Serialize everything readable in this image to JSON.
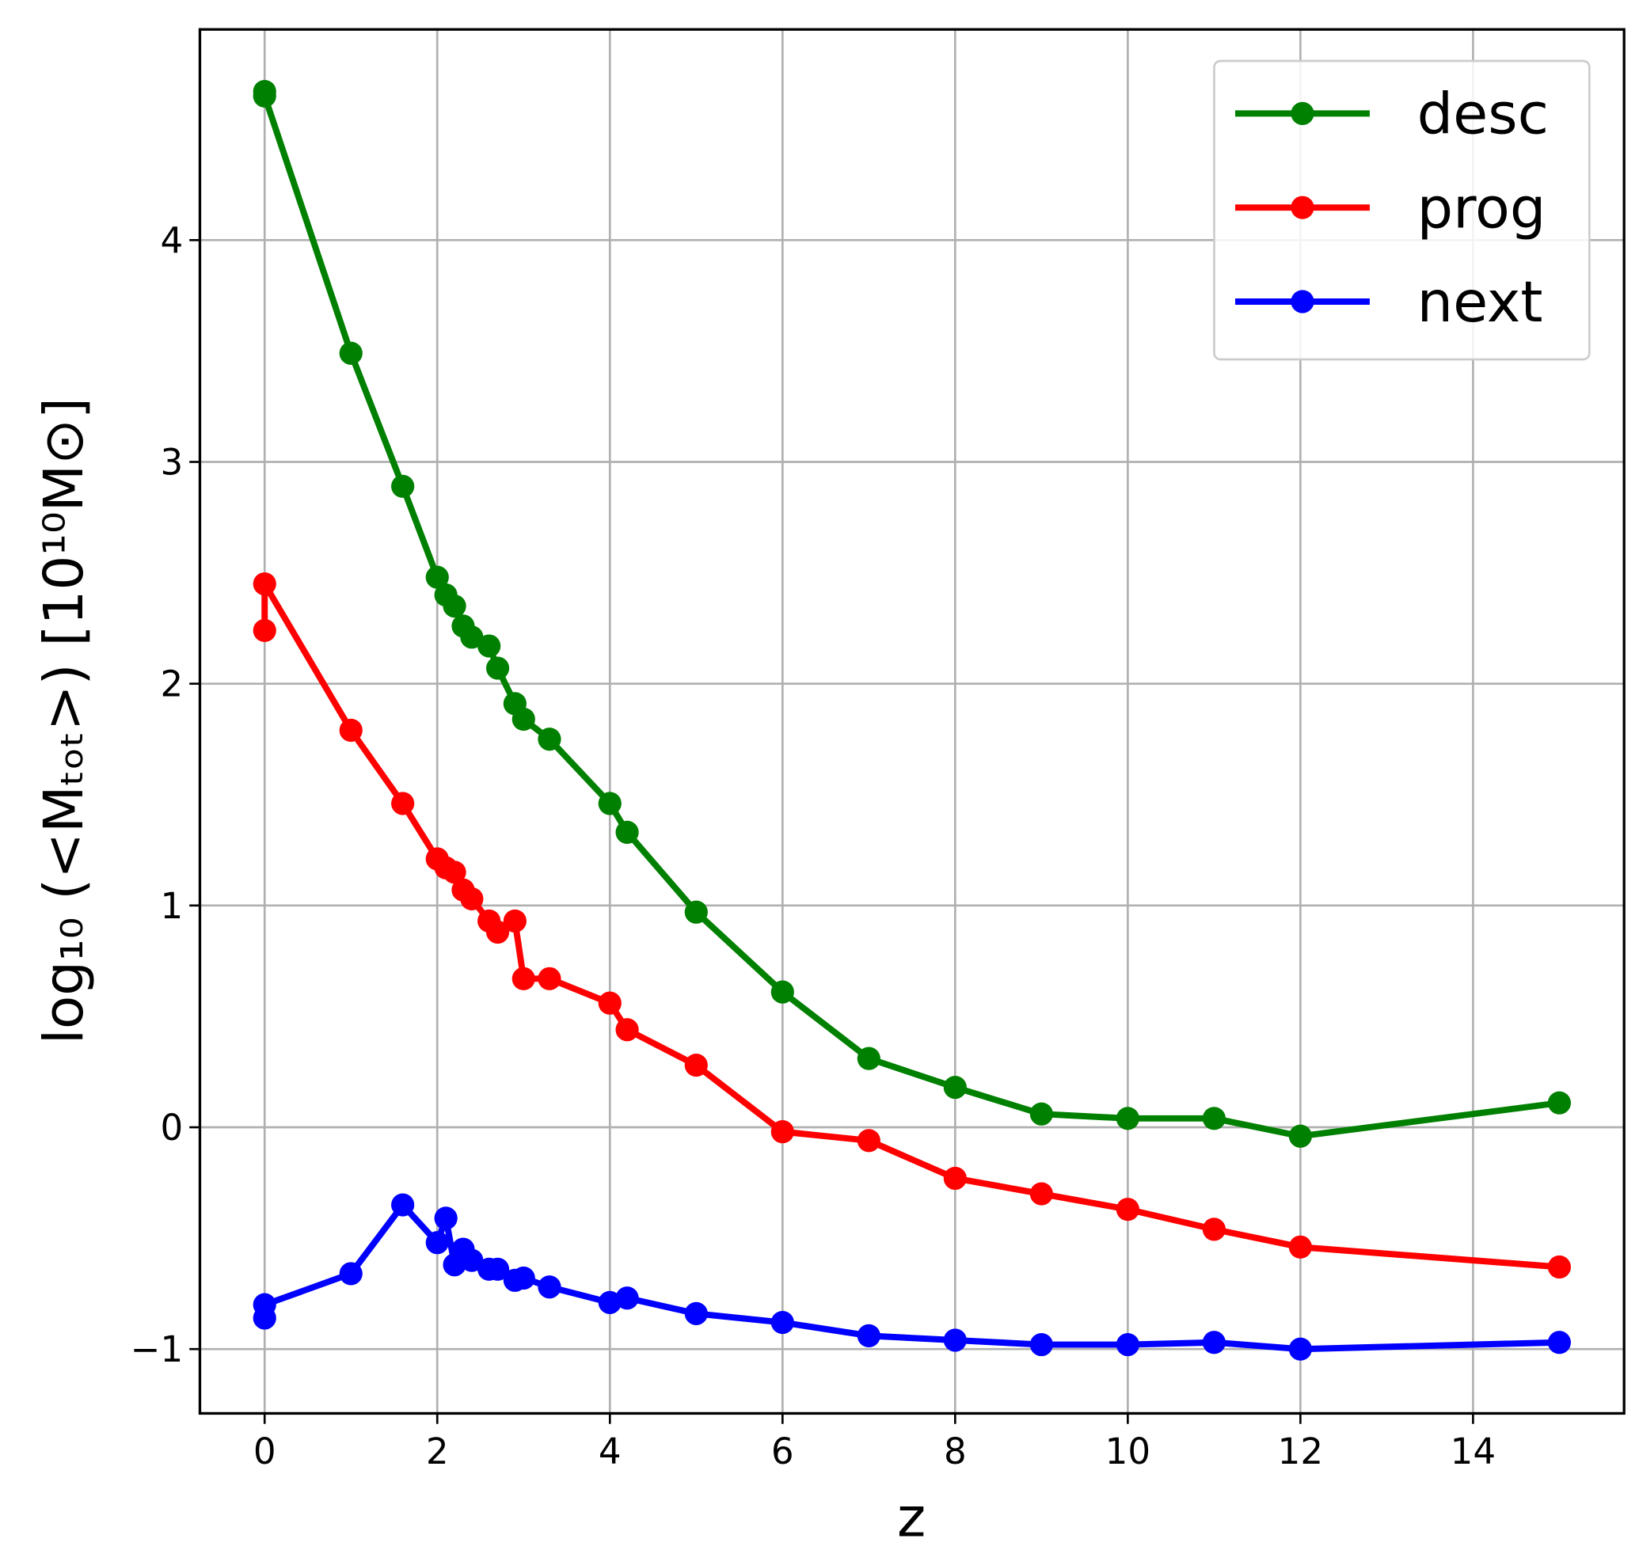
{
  "chart_data": {
    "type": "line",
    "xlabel": "z",
    "ylabel": "log₁₀ (<Mₜₒₜ>) [10¹⁰M⊙]",
    "x": [
      0,
      0,
      1,
      1.6,
      2,
      2.1,
      2.2,
      2.3,
      2.4,
      2.6,
      2.7,
      2.9,
      3.0,
      3.3,
      4,
      4.2,
      5,
      6,
      7,
      8,
      9,
      10,
      11,
      12,
      15
    ],
    "series": [
      {
        "name": "desc",
        "color": "#008000",
        "values": [
          4.67,
          4.65,
          3.49,
          2.89,
          2.48,
          2.4,
          2.35,
          2.26,
          2.21,
          2.17,
          2.07,
          1.91,
          1.84,
          1.75,
          1.46,
          1.33,
          0.97,
          0.61,
          0.31,
          0.18,
          0.06,
          0.04,
          0.04,
          -0.04,
          0.11
        ]
      },
      {
        "name": "prog",
        "color": "#ff0000",
        "values": [
          2.24,
          2.45,
          1.79,
          1.46,
          1.21,
          1.17,
          1.15,
          1.07,
          1.03,
          0.93,
          0.88,
          0.93,
          0.67,
          0.67,
          0.56,
          0.44,
          0.28,
          -0.02,
          -0.06,
          -0.23,
          -0.3,
          -0.37,
          -0.46,
          -0.54,
          -0.63
        ]
      },
      {
        "name": "next",
        "color": "#0000ff",
        "values": [
          -0.86,
          -0.8,
          -0.66,
          -0.35,
          -0.52,
          -0.41,
          -0.62,
          -0.55,
          -0.6,
          -0.64,
          -0.64,
          -0.69,
          -0.68,
          -0.72,
          -0.79,
          -0.77,
          -0.84,
          -0.88,
          -0.94,
          -0.96,
          -0.98,
          -0.98,
          -0.97,
          -1.0,
          -0.97
        ]
      }
    ],
    "xlim": [
      -0.75,
      15.75
    ],
    "ylim": [
      -1.29,
      4.95
    ],
    "xticks": [
      0,
      2,
      4,
      6,
      8,
      10,
      12,
      14
    ],
    "yticks": [
      {
        "value": -1,
        "label": "−1"
      },
      0,
      1,
      2,
      3,
      4
    ],
    "grid": true,
    "legend": "upper right"
  }
}
